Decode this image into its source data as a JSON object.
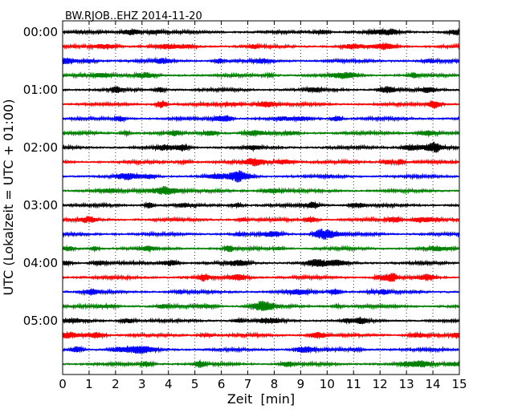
{
  "chart_data": {
    "type": "line",
    "title": "BW.RJOB..EHZ 2014-11-20",
    "xlabel": "Zeit  [min]",
    "ylabel": "UTC (Lokalzeit = UTC + 01:00)",
    "xlim": [
      0,
      15
    ],
    "x_ticks": [
      "0",
      "1",
      "2",
      "3",
      "4",
      "5",
      "6",
      "7",
      "8",
      "9",
      "10",
      "11",
      "12",
      "13",
      "14",
      "15"
    ],
    "y_ticks": [
      "00:00",
      "01:00",
      "02:00",
      "03:00",
      "04:00",
      "05:00"
    ],
    "grid": "vertical-dotted",
    "trace_colors": [
      "#000000",
      "#ff0000",
      "#0000ff",
      "#008000"
    ],
    "traces_per_hour": 4,
    "series": [
      {
        "offset": 0
      },
      {
        "offset": 1
      },
      {
        "offset": 2
      },
      {
        "offset": 3
      },
      {
        "offset": 4
      },
      {
        "offset": 5
      },
      {
        "offset": 6
      },
      {
        "offset": 7
      },
      {
        "offset": 8
      },
      {
        "offset": 9
      },
      {
        "offset": 10
      },
      {
        "offset": 11
      },
      {
        "offset": 12
      },
      {
        "offset": 13
      },
      {
        "offset": 14
      },
      {
        "offset": 15
      },
      {
        "offset": 16
      },
      {
        "offset": 17
      },
      {
        "offset": 18
      },
      {
        "offset": 19
      },
      {
        "offset": 20
      },
      {
        "offset": 21
      },
      {
        "offset": 22
      },
      {
        "offset": 23
      }
    ]
  }
}
